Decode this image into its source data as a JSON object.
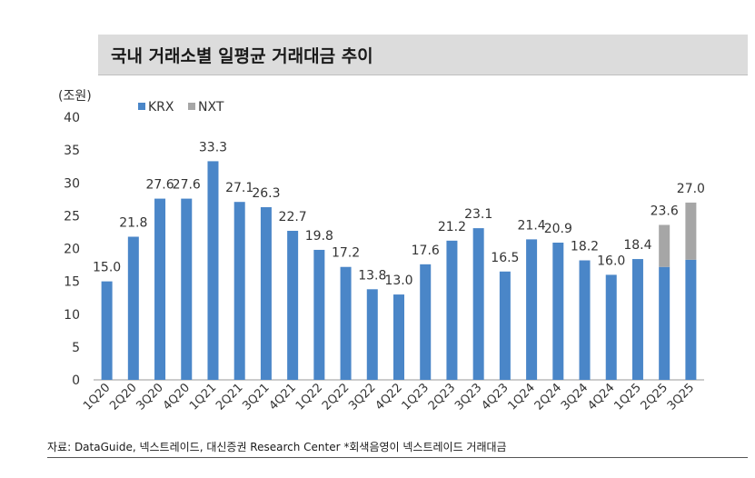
{
  "title": "국내 거래소별 일평균 거래대금 추이",
  "source": "자료: DataGuide, 넥스트레이드, 대신증권 Research Center  *회색음영이 넥스트레이드 거래대금",
  "colors": {
    "krx": "#4a86c8",
    "nxt": "#a6a6a6"
  },
  "chart_data": {
    "type": "bar",
    "stacked": true,
    "unit_label": "(조원)",
    "categories": [
      "1Q20",
      "2Q20",
      "3Q20",
      "4Q20",
      "1Q21",
      "2Q21",
      "3Q21",
      "4Q21",
      "1Q22",
      "2Q22",
      "3Q22",
      "4Q22",
      "1Q23",
      "2Q23",
      "3Q23",
      "4Q23",
      "1Q24",
      "2Q24",
      "3Q24",
      "4Q24",
      "1Q25",
      "2Q25",
      "3Q25"
    ],
    "series": [
      {
        "name": "KRX",
        "values": [
          15.0,
          21.8,
          27.6,
          27.6,
          33.3,
          27.1,
          26.3,
          22.7,
          19.8,
          17.2,
          13.8,
          13.0,
          17.6,
          21.2,
          23.1,
          16.5,
          21.4,
          20.9,
          18.2,
          16.0,
          18.4,
          17.2,
          18.3
        ]
      },
      {
        "name": "NXT",
        "values": [
          0,
          0,
          0,
          0,
          0,
          0,
          0,
          0,
          0,
          0,
          0,
          0,
          0,
          0,
          0,
          0,
          0,
          0,
          0,
          0,
          0,
          6.4,
          8.7
        ]
      }
    ],
    "totals": [
      "15.0",
      "21.8",
      "27.6",
      "27.6",
      "33.3",
      "27.1",
      "26.3",
      "22.7",
      "19.8",
      "17.2",
      "13.8",
      "13.0",
      "17.6",
      "21.2",
      "23.1",
      "16.5",
      "21.4",
      "20.9",
      "18.2",
      "16.0",
      "18.4",
      "23.6",
      "27.0"
    ],
    "yticks": [
      "0",
      "5",
      "10",
      "15",
      "20",
      "25",
      "30",
      "35",
      "40"
    ],
    "ylim": [
      0,
      40
    ],
    "legend_position": "top-left"
  }
}
